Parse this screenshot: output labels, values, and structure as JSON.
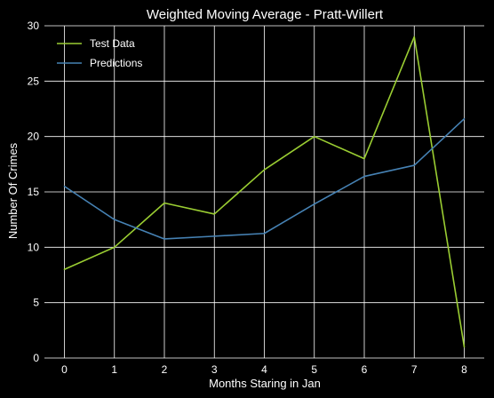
{
  "chart_data": {
    "type": "line",
    "title": "Weighted Moving Average - Pratt-Willert",
    "xlabel": "Months Staring in Jan",
    "ylabel": "Number Of Crimes",
    "x": [
      0,
      1,
      2,
      3,
      4,
      5,
      6,
      7,
      8
    ],
    "xlim": [
      -0.4,
      8.4
    ],
    "ylim": [
      0,
      30
    ],
    "xticks": [
      0,
      1,
      2,
      3,
      4,
      5,
      6,
      7,
      8
    ],
    "yticks": [
      0,
      5,
      10,
      15,
      20,
      25,
      30
    ],
    "grid": true,
    "legend_position": "top-left",
    "series": [
      {
        "name": "Test Data",
        "color": "#9acd32",
        "values": [
          8,
          10,
          14,
          13,
          17,
          20,
          18,
          29,
          1
        ]
      },
      {
        "name": "Predictions",
        "color": "#4682b4",
        "values": [
          15.5,
          12.5,
          10.75,
          11,
          11.25,
          13.9,
          16.4,
          17.4,
          21.6
        ]
      }
    ],
    "colors": {
      "background": "#000000",
      "grid": "#ffffff",
      "text": "#ffffff"
    }
  }
}
